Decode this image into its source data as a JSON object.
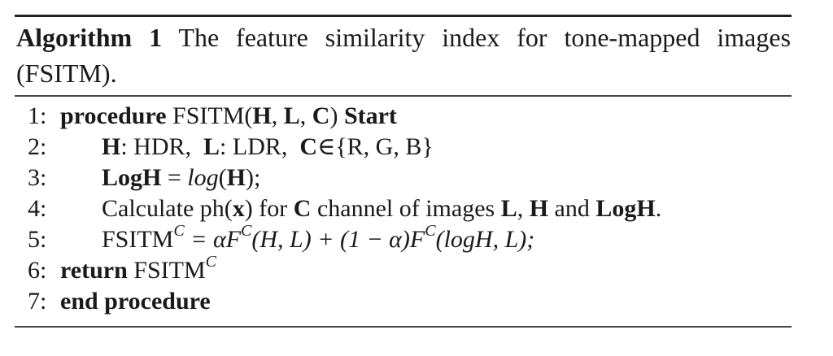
{
  "caption": {
    "label": "Algorithm 1",
    "text": "The feature similarity index for tone-mapped images (FSITM)."
  },
  "lines": [
    {
      "num": "1:",
      "kw": "procedure",
      "name": "FSITM(",
      "a1": "H",
      "s1": ", ",
      "a2": "L",
      "s2": ", ",
      "a3": "C",
      "s3": ")",
      "kw2": "Start"
    },
    {
      "num": "2:",
      "h": "H",
      "t1": ": HDR,",
      "l": "L",
      "t2": ": LDR,",
      "c": "C",
      "t3": "∈{R, G, B}"
    },
    {
      "num": "3:",
      "lhs": "LogH",
      "eq": "= ",
      "fn": "log",
      "lp": "(",
      "arg": "H",
      "rp": ");"
    },
    {
      "num": "4:",
      "t1": "Calculate ph(",
      "x": "x",
      "t2": ") for",
      "c": "C",
      "t3": "channel of images",
      "l": "L",
      "t4": ",",
      "h": "H",
      "t5": "and",
      "logh": "LogH",
      "t6": "."
    },
    {
      "num": "5:",
      "t1": "FSITM",
      "sup1": "C",
      "t2": " = αF",
      "sup2": "C",
      "t3": "(H, L) + (1 − α)F",
      "sup3": "C",
      "t4": "(logH, L);"
    },
    {
      "num": "6:",
      "kw": "return",
      "t1": "FSITM",
      "sup": "C"
    },
    {
      "num": "7:",
      "kw": "end procedure"
    }
  ]
}
